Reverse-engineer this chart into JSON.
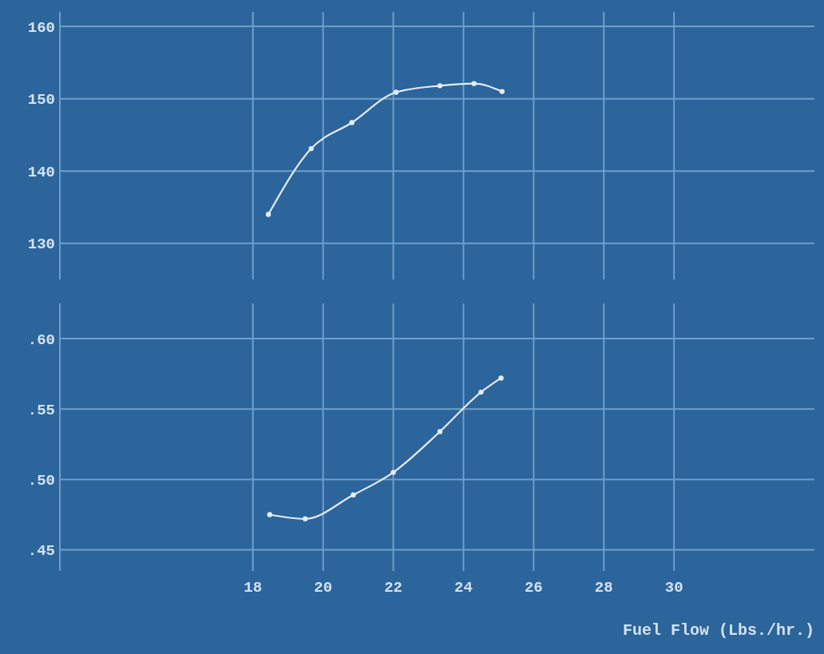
{
  "chart_data": [
    {
      "type": "line",
      "xlim": [
        12.5,
        34
      ],
      "ylim": [
        125,
        162
      ],
      "xticks": [
        18,
        20,
        22,
        24,
        26,
        28,
        30
      ],
      "yticks": [
        130,
        140,
        150,
        160
      ],
      "grid": true,
      "tick_labels": "y",
      "marker": "circle",
      "series": [
        {
          "color": "#e4edf5",
          "x": [
            18.44,
            19.66,
            20.82,
            22.08,
            23.33,
            24.3,
            25.1
          ],
          "values": [
            134.0,
            143.1,
            146.7,
            150.9,
            151.8,
            152.1,
            151.0
          ]
        }
      ]
    },
    {
      "type": "line",
      "xlim": [
        12.5,
        34
      ],
      "ylim": [
        0.435,
        0.625
      ],
      "xticks": [
        18,
        20,
        22,
        24,
        26,
        28,
        30
      ],
      "yticks": [
        {
          "value": 0.45,
          "label": ".45"
        },
        {
          "value": 0.5,
          "label": ".50"
        },
        {
          "value": 0.55,
          "label": ".55"
        },
        {
          "value": 0.6,
          "label": ".60"
        }
      ],
      "grid": true,
      "marker": "circle",
      "xlabel": "Fuel Flow (Lbs./hr.)",
      "series": [
        {
          "color": "#e4edf5",
          "x": [
            18.48,
            19.49,
            20.86,
            22.0,
            23.33,
            24.5,
            25.07
          ],
          "values": [
            0.475,
            0.472,
            0.489,
            0.505,
            0.534,
            0.562,
            0.572
          ]
        }
      ]
    }
  ]
}
